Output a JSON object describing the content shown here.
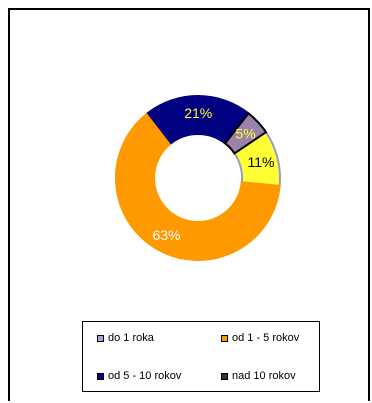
{
  "chart_data": {
    "type": "pie",
    "variant": "donut",
    "title": "",
    "categories": [
      "do 1 roka",
      "od 1 - 5 rokov",
      "od 5 - 10 rokov",
      "nad 10 rokov"
    ],
    "values": [
      11,
      63,
      21,
      5
    ],
    "value_labels": [
      "11%",
      "63%",
      "21%",
      "5%"
    ],
    "colors": [
      "#FFFF33",
      "#FF9900",
      "#000080",
      "#9B82A8"
    ],
    "slice_borders": [
      "#9A9ACD",
      "#FF9900",
      "#000080",
      "#000000"
    ],
    "label_colors": [
      "#000000",
      "#FFFFFF",
      "#FFFF33",
      "#FFFF33"
    ],
    "legend": {
      "position": "bottom",
      "entries": [
        {
          "label": "do 1 roka",
          "swatch": "#A8A0DC"
        },
        {
          "label": "od 1 - 5 rokov",
          "swatch": "#FF9900"
        },
        {
          "label": "od 5 - 10 rokov",
          "swatch": "#000080"
        },
        {
          "label": "nad 10 rokov",
          "swatch": "#333333"
        }
      ]
    }
  }
}
